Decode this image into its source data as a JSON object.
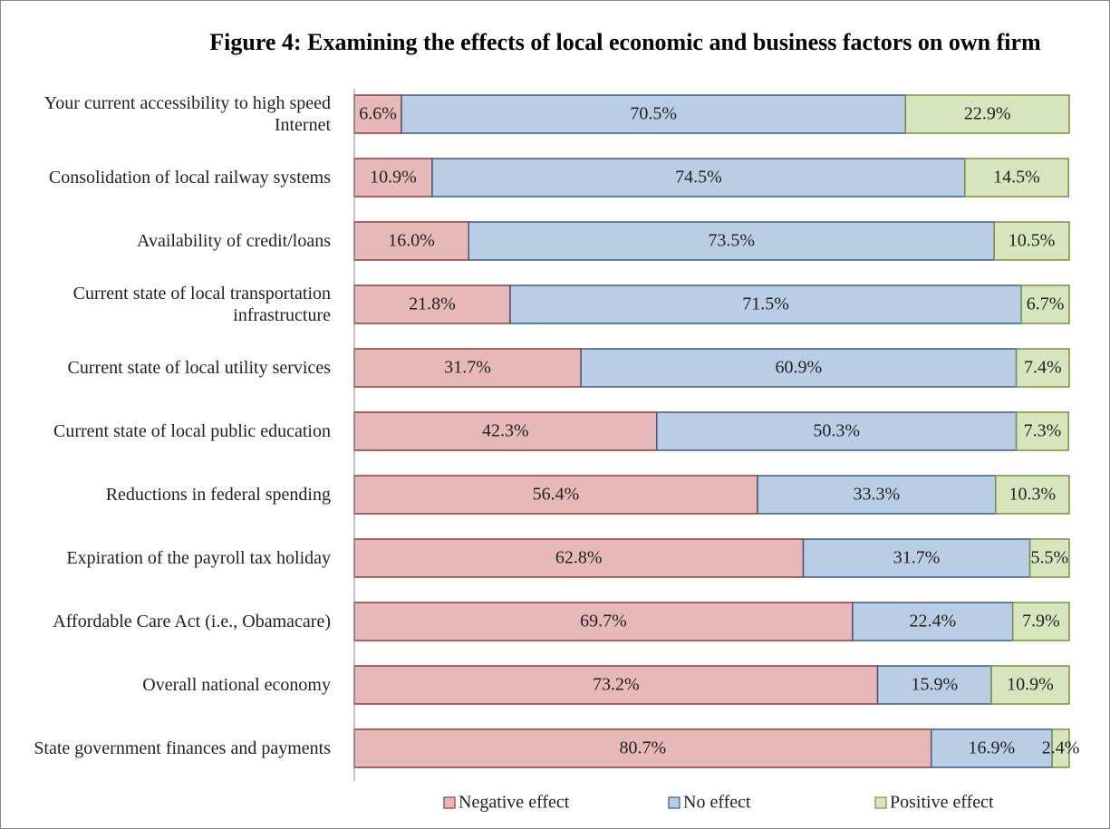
{
  "chart_data": {
    "type": "stacked-bar-horizontal",
    "title": "Figure 4: Examining the effects of local economic and business factors on own firm",
    "categories": [
      "Your current accessibility to high speed Internet",
      "Consolidation of local railway systems",
      "Availability of credit/loans",
      "Current state of local transportation infrastructure",
      "Current state of local utility services",
      "Current state of local public education",
      "Reductions in federal spending",
      "Expiration of the payroll tax holiday",
      "Affordable Care Act (i.e., Obamacare)",
      "Overall national economy",
      "State government finances and payments"
    ],
    "xlim": [
      0,
      100
    ],
    "series": [
      {
        "name": "Negative effect",
        "color": "#e6b9b8",
        "stroke": "#953735",
        "values": [
          6.6,
          10.9,
          16.0,
          21.8,
          31.7,
          42.3,
          56.4,
          62.8,
          69.7,
          73.2,
          80.7
        ],
        "value_labels": [
          "6.6%",
          "10.9%",
          "16.0%",
          "21.8%",
          "31.7%",
          "42.3%",
          "56.4%",
          "62.8%",
          "69.7%",
          "73.2%",
          "80.7%"
        ]
      },
      {
        "name": "No effect",
        "color": "#b9cde5",
        "stroke": "#385d8a",
        "values": [
          70.5,
          74.5,
          73.5,
          71.5,
          60.9,
          50.3,
          33.3,
          31.7,
          22.4,
          15.9,
          16.9
        ],
        "value_labels": [
          "70.5%",
          "74.5%",
          "73.5%",
          "71.5%",
          "60.9%",
          "50.3%",
          "33.3%",
          "31.7%",
          "22.4%",
          "15.9%",
          "16.9%"
        ]
      },
      {
        "name": "Positive effect",
        "color": "#d7e4bd",
        "stroke": "#77933c",
        "values": [
          22.9,
          14.5,
          10.5,
          6.7,
          7.4,
          7.3,
          10.3,
          5.5,
          7.9,
          10.9,
          2.4
        ],
        "value_labels": [
          "22.9%",
          "14.5%",
          "10.5%",
          "6.7%",
          "7.4%",
          "7.3%",
          "10.3%",
          "5.5%",
          "7.9%",
          "10.9%",
          "2.4%"
        ]
      }
    ]
  }
}
